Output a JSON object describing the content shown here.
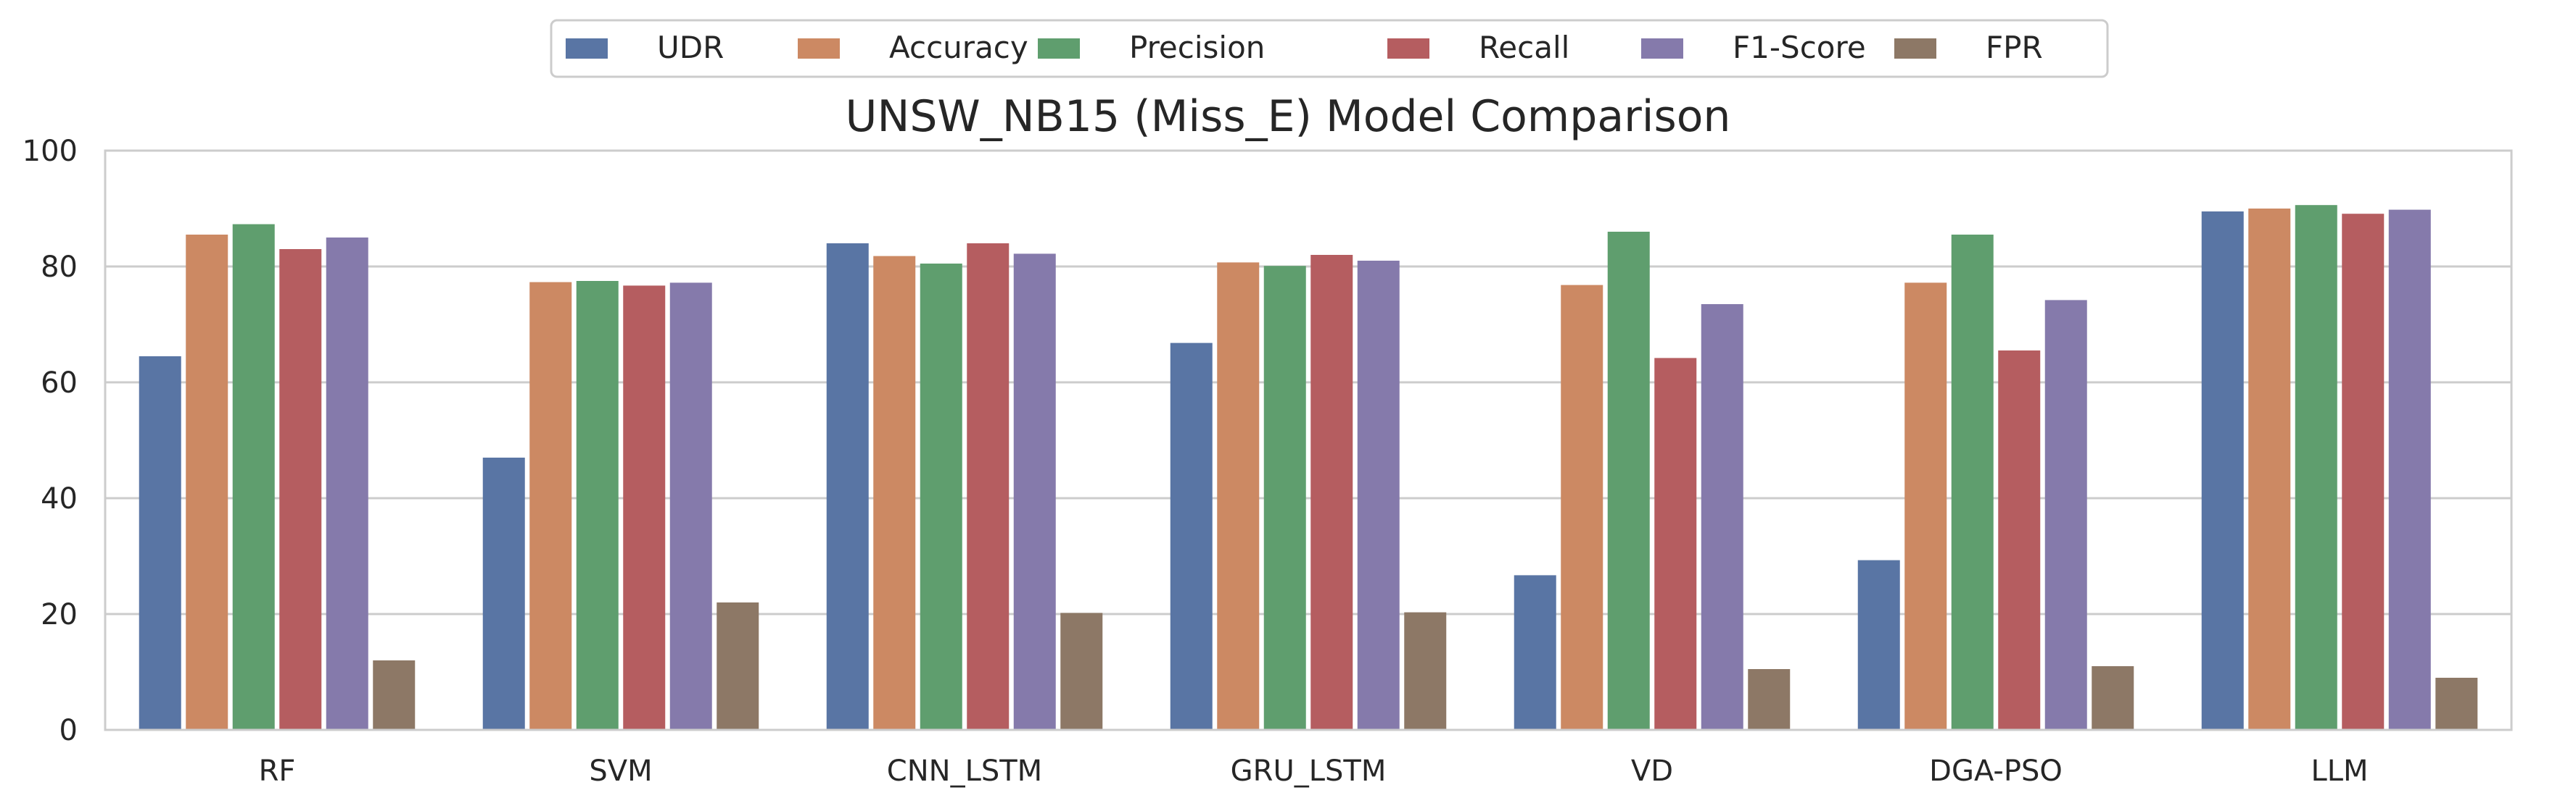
{
  "chart_data": {
    "type": "bar",
    "title": "UNSW_NB15 (Miss_E) Model Comparison",
    "xlabel": "",
    "ylabel": "",
    "ylim": [
      0,
      100
    ],
    "yticks": [
      0,
      20,
      40,
      60,
      80,
      100
    ],
    "grid": "horizontal",
    "legend_position": "top-center",
    "categories": [
      "RF",
      "SVM",
      "CNN_LSTM",
      "GRU_LSTM",
      "VD",
      "DGA-PSO",
      "LLM"
    ],
    "series": [
      {
        "name": "UDR",
        "color": "#5975a4",
        "values": [
          64.5,
          47.0,
          84.0,
          66.8,
          26.7,
          29.3,
          89.5
        ]
      },
      {
        "name": "Accuracy",
        "color": "#cc8963",
        "values": [
          85.5,
          77.3,
          81.8,
          80.7,
          76.8,
          77.2,
          90.0
        ]
      },
      {
        "name": "Precision",
        "color": "#5f9e6e",
        "values": [
          87.3,
          77.5,
          80.5,
          80.1,
          86.0,
          85.5,
          90.6
        ]
      },
      {
        "name": "Recall",
        "color": "#b55d60",
        "values": [
          83.0,
          76.7,
          84.0,
          82.0,
          64.2,
          65.5,
          89.1
        ]
      },
      {
        "name": "F1-Score",
        "color": "#857aab",
        "values": [
          85.0,
          77.2,
          82.2,
          81.0,
          73.5,
          74.2,
          89.8
        ]
      },
      {
        "name": "FPR",
        "color": "#8d7866",
        "values": [
          12.0,
          22.0,
          20.2,
          20.3,
          10.5,
          11.0,
          9.0
        ]
      }
    ]
  },
  "colors": {
    "grid": "#cccccc",
    "spine": "#cccccc",
    "text": "#262626",
    "background": "#ffffff"
  }
}
